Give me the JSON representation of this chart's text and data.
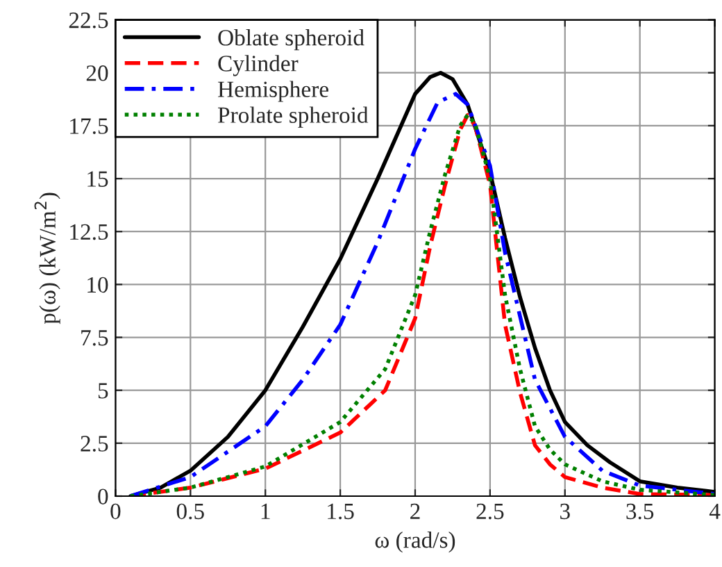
{
  "chart_data": {
    "type": "line",
    "xlabel": "ω (rad/s)",
    "ylabel": "p(ω) (kW/m$^{2}$)",
    "xlim": [
      0,
      4
    ],
    "ylim": [
      0,
      22.5
    ],
    "xticks": [
      0,
      0.5,
      1,
      1.5,
      2,
      2.5,
      3,
      3.5,
      4
    ],
    "yticks": [
      0,
      2.5,
      5,
      7.5,
      10,
      12.5,
      15,
      17.5,
      20,
      22.5
    ],
    "grid": true,
    "legend": "top left",
    "series": [
      {
        "name": "Oblate spheroid",
        "color": "#000000",
        "line_style": "solid",
        "x": [
          0.1,
          0.3,
          0.5,
          0.75,
          1,
          1.25,
          1.5,
          1.75,
          2,
          2.1,
          2.17,
          2.25,
          2.35,
          2.5,
          2.6,
          2.7,
          2.8,
          2.9,
          3,
          3.15,
          3.3,
          3.5,
          3.75,
          4
        ],
        "values": [
          0,
          0.4,
          1.2,
          2.8,
          5.0,
          8.0,
          11.2,
          15.0,
          19.0,
          19.8,
          20.0,
          19.7,
          18.5,
          15.3,
          12.2,
          9.4,
          7.0,
          5.0,
          3.5,
          2.4,
          1.6,
          0.7,
          0.4,
          0.2
        ]
      },
      {
        "name": "Cylinder",
        "color": "#ff0000",
        "line_style": "dashed",
        "x": [
          0.1,
          0.5,
          1,
          1.5,
          1.8,
          2,
          2.1,
          2.2,
          2.3,
          2.35,
          2.4,
          2.5,
          2.6,
          2.7,
          2.8,
          2.9,
          3,
          3.25,
          3.5,
          4
        ],
        "values": [
          0,
          0.4,
          1.3,
          3.0,
          5.0,
          8.4,
          11.8,
          14.7,
          17.3,
          18.0,
          17.5,
          14.7,
          8.1,
          4.9,
          2.4,
          1.5,
          0.9,
          0.4,
          0.1,
          0.05
        ]
      },
      {
        "name": "Hemisphere",
        "color": "#0000ff",
        "line_style": "dashdot",
        "x": [
          0.1,
          0.5,
          1,
          1.25,
          1.5,
          1.75,
          2,
          2.15,
          2.27,
          2.35,
          2.5,
          2.6,
          2.7,
          2.8,
          3,
          3.25,
          3.5,
          4
        ],
        "values": [
          0,
          0.9,
          3.3,
          5.5,
          8.1,
          12.0,
          16.4,
          18.6,
          19.0,
          18.5,
          15.6,
          11.5,
          8.5,
          5.5,
          2.8,
          1.2,
          0.5,
          0.1
        ]
      },
      {
        "name": "Prolate spheroid",
        "color": "#008000",
        "line_style": "dotted",
        "x": [
          0.1,
          0.5,
          1,
          1.5,
          1.8,
          2,
          2.1,
          2.2,
          2.3,
          2.35,
          2.4,
          2.5,
          2.6,
          2.7,
          2.8,
          2.9,
          3,
          3.25,
          3.5,
          4
        ],
        "values": [
          0,
          0.4,
          1.4,
          3.5,
          6.0,
          9.5,
          12.5,
          15.2,
          17.5,
          18.0,
          17.6,
          15.0,
          9.5,
          6.0,
          3.3,
          2.2,
          1.5,
          0.7,
          0.3,
          0.05
        ]
      }
    ]
  }
}
